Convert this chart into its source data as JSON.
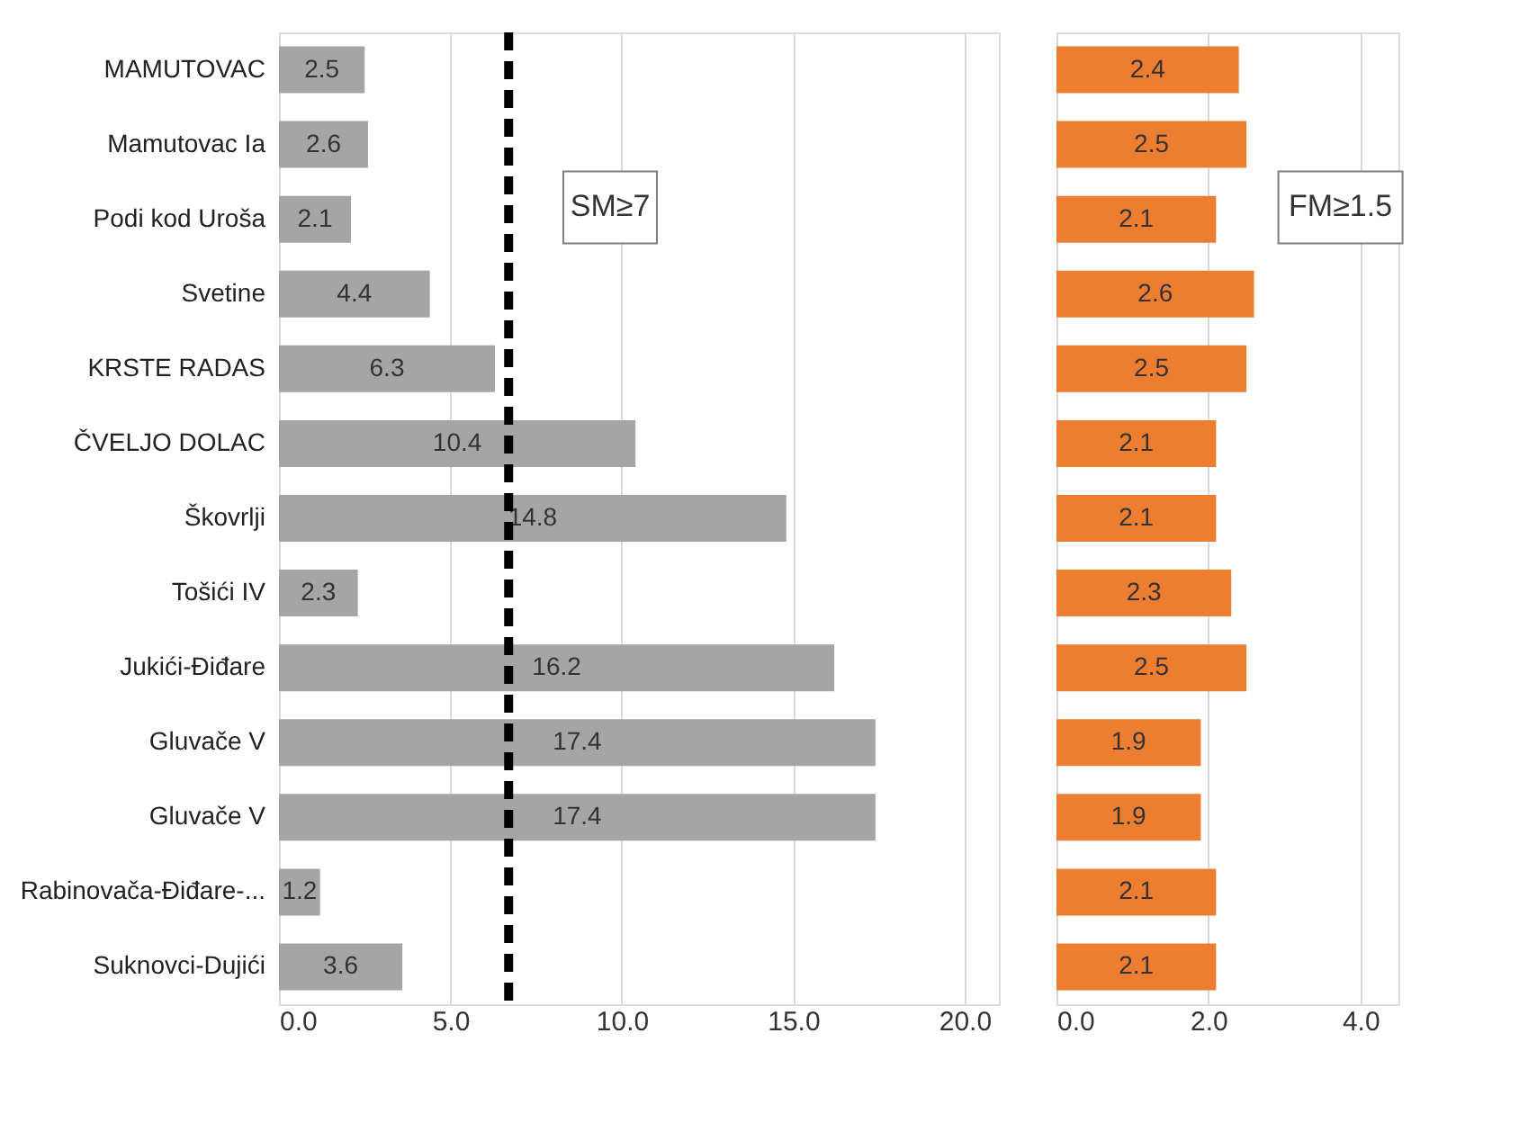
{
  "chart_data": [
    {
      "type": "bar",
      "orientation": "horizontal",
      "categories": [
        "MAMUTOVAC",
        "Mamutovac Ia",
        "Podi kod Uroša",
        "Svetine",
        "KRSTE RADAS",
        "ČVELJO DOLAC",
        "Škovrlji",
        "Tošići IV",
        "Jukići-Điđare",
        "Gluvače V",
        "Gluvače V",
        "Rabinovača-Điđare-...",
        "Suknovci-Dujići"
      ],
      "series": [
        {
          "color": "#a5a5a5",
          "values": [
            2.5,
            2.6,
            2.1,
            4.4,
            6.3,
            10.4,
            14.8,
            2.3,
            16.2,
            17.4,
            17.4,
            1.2,
            3.6
          ]
        }
      ],
      "data_labels": true,
      "xlim": [
        0,
        21
      ],
      "xticks": [
        {
          "value": 0,
          "label": "0.0"
        },
        {
          "value": 5,
          "label": "5.0"
        },
        {
          "value": 10,
          "label": "10.0"
        },
        {
          "value": 15,
          "label": "15.0"
        },
        {
          "value": 20,
          "label": "20.0"
        }
      ],
      "grid": "x",
      "ref_lines": [
        {
          "axis": "x",
          "value": 6.7,
          "label": null,
          "color": "#000000",
          "line_style": "dashed"
        }
      ],
      "annotations": [
        "SM≥7"
      ]
    },
    {
      "type": "bar",
      "orientation": "horizontal",
      "categories": [
        null,
        null,
        null,
        null,
        null,
        null,
        null,
        null,
        null,
        null,
        null,
        null,
        null
      ],
      "series": [
        {
          "color": "#ed7d31",
          "values": [
            2.4,
            2.5,
            2.1,
            2.6,
            2.5,
            2.1,
            2.1,
            2.3,
            2.5,
            1.9,
            1.9,
            2.1,
            2.1
          ]
        }
      ],
      "data_labels": true,
      "xlim": [
        0,
        4.5
      ],
      "xticks": [
        {
          "value": 0,
          "label": "0.0"
        },
        {
          "value": 2,
          "label": "2.0"
        },
        {
          "value": 4,
          "label": "4.0"
        }
      ],
      "grid": "x",
      "tick_labels": "x",
      "annotations": [
        "FM≥1.5"
      ]
    }
  ]
}
